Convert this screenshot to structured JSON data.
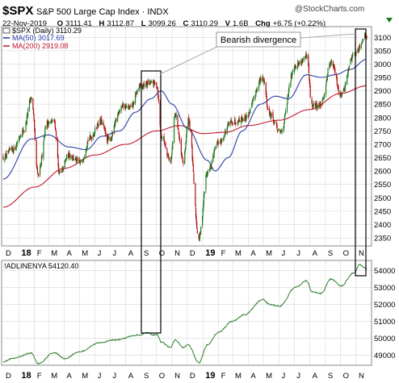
{
  "header": {
    "symbol": "$SPX",
    "name": "S&P 500 Large Cap Index",
    "exchange": "INDX",
    "date": "22-Nov-2019",
    "open_label": "O",
    "open": "3111.41",
    "high_label": "H",
    "high": "3112.87",
    "low_label": "L",
    "low": "3099.26",
    "close_label": "C",
    "close": "3110.29",
    "volume_label": "V",
    "volume": "1.6B",
    "change_label": "Chg",
    "change": "+6.75 (+0.22%)",
    "watermark": "@StockCharts.com"
  },
  "legend": {
    "price": "$SPX (Daily) 3110.29",
    "ma50": "MA(50) 3017.69",
    "ma200": "MA(200) 2919.08",
    "breadth": "!ADLINENYA 54120.40"
  },
  "annotation": {
    "text": "Bearish divergence"
  },
  "colors": {
    "up": "#1e7a1e",
    "down": "#b01010",
    "ma50": "#2a3ea8",
    "ma200": "#c0182e",
    "adline": "#2e7d2e",
    "grid": "#d8d8d8"
  },
  "x_axis": {
    "labels": [
      "D",
      "18",
      "F",
      "M",
      "A",
      "M",
      "J",
      "J",
      "A",
      "S",
      "O",
      "N",
      "D",
      "19",
      "F",
      "M",
      "A",
      "M",
      "J",
      "J",
      "A",
      "S",
      "O",
      "N"
    ]
  },
  "chart_data": [
    {
      "type": "candlestick",
      "title": "$SPX S&P 500 Large Cap Index",
      "y_ticks": [
        2350,
        2400,
        2450,
        2500,
        2550,
        2600,
        2650,
        2700,
        2750,
        2800,
        2850,
        2900,
        2950,
        3000,
        3050,
        3100
      ],
      "ylim": [
        2320,
        3140
      ],
      "price_anchors": [
        [
          "2017-12-01",
          2650
        ],
        [
          "2017-12-20",
          2680
        ],
        [
          "2018-01-10",
          2750
        ],
        [
          "2018-01-26",
          2872
        ],
        [
          "2018-02-08",
          2582
        ],
        [
          "2018-02-26",
          2780
        ],
        [
          "2018-03-12",
          2785
        ],
        [
          "2018-03-23",
          2588
        ],
        [
          "2018-04-10",
          2660
        ],
        [
          "2018-05-03",
          2630
        ],
        [
          "2018-05-22",
          2725
        ],
        [
          "2018-06-12",
          2785
        ],
        [
          "2018-06-28",
          2715
        ],
        [
          "2018-07-25",
          2845
        ],
        [
          "2018-08-10",
          2835
        ],
        [
          "2018-08-29",
          2915
        ],
        [
          "2018-09-20",
          2930
        ],
        [
          "2018-10-01",
          2925
        ],
        [
          "2018-10-11",
          2730
        ],
        [
          "2018-10-29",
          2640
        ],
        [
          "2018-11-07",
          2810
        ],
        [
          "2018-11-23",
          2633
        ],
        [
          "2018-12-03",
          2790
        ],
        [
          "2018-12-24",
          2351
        ],
        [
          "2019-01-10",
          2596
        ],
        [
          "2019-02-01",
          2706
        ],
        [
          "2019-02-28",
          2784
        ],
        [
          "2019-03-25",
          2798
        ],
        [
          "2019-04-30",
          2946
        ],
        [
          "2019-05-13",
          2812
        ],
        [
          "2019-06-03",
          2744
        ],
        [
          "2019-07-03",
          2995
        ],
        [
          "2019-07-26",
          3025
        ],
        [
          "2019-08-05",
          2845
        ],
        [
          "2019-08-23",
          2847
        ],
        [
          "2019-09-12",
          3009
        ],
        [
          "2019-10-02",
          2887
        ],
        [
          "2019-10-28",
          3039
        ],
        [
          "2019-11-22",
          3110
        ]
      ],
      "ma50_anchors": [
        [
          "2017-12-01",
          2570
        ],
        [
          "2018-01-26",
          2720
        ],
        [
          "2018-03-01",
          2735
        ],
        [
          "2018-04-10",
          2690
        ],
        [
          "2018-05-15",
          2680
        ],
        [
          "2018-06-15",
          2730
        ],
        [
          "2018-07-20",
          2750
        ],
        [
          "2018-08-20",
          2820
        ],
        [
          "2018-09-20",
          2870
        ],
        [
          "2018-10-10",
          2900
        ],
        [
          "2018-11-01",
          2850
        ],
        [
          "2018-12-01",
          2760
        ],
        [
          "2019-01-10",
          2640
        ],
        [
          "2019-01-25",
          2600
        ],
        [
          "2019-02-20",
          2650
        ],
        [
          "2019-03-20",
          2750
        ],
        [
          "2019-04-25",
          2850
        ],
        [
          "2019-05-25",
          2880
        ],
        [
          "2019-06-20",
          2870
        ],
        [
          "2019-07-25",
          2960
        ],
        [
          "2019-08-25",
          2950
        ],
        [
          "2019-09-20",
          2960
        ],
        [
          "2019-10-20",
          2980
        ],
        [
          "2019-11-22",
          3018
        ]
      ],
      "ma200_anchors": [
        [
          "2017-12-01",
          2465
        ],
        [
          "2018-02-01",
          2540
        ],
        [
          "2018-04-01",
          2610
        ],
        [
          "2018-06-01",
          2660
        ],
        [
          "2018-08-01",
          2700
        ],
        [
          "2018-10-01",
          2750
        ],
        [
          "2018-11-15",
          2770
        ],
        [
          "2019-01-01",
          2740
        ],
        [
          "2019-02-15",
          2745
        ],
        [
          "2019-04-01",
          2770
        ],
        [
          "2019-06-01",
          2790
        ],
        [
          "2019-08-01",
          2830
        ],
        [
          "2019-10-01",
          2890
        ],
        [
          "2019-11-22",
          2919
        ]
      ]
    },
    {
      "type": "line",
      "title": "!ADLINENYA",
      "y_ticks": [
        49000,
        50000,
        51000,
        52000,
        53000,
        54000
      ],
      "ylim": [
        48400,
        54600
      ],
      "series": [
        {
          "name": "!ADLINENYA",
          "anchors": [
            [
              "2017-12-01",
              48620
            ],
            [
              "2017-12-20",
              48800
            ],
            [
              "2018-01-26",
              49120
            ],
            [
              "2018-02-08",
              48500
            ],
            [
              "2018-03-12",
              49150
            ],
            [
              "2018-04-02",
              48800
            ],
            [
              "2018-05-01",
              49200
            ],
            [
              "2018-06-12",
              49750
            ],
            [
              "2018-07-10",
              49900
            ],
            [
              "2018-08-29",
              50200
            ],
            [
              "2018-09-12",
              50330
            ],
            [
              "2018-09-25",
              50200
            ],
            [
              "2018-10-01",
              50250
            ],
            [
              "2018-10-11",
              49750
            ],
            [
              "2018-10-29",
              49450
            ],
            [
              "2018-11-07",
              49900
            ],
            [
              "2018-11-23",
              49450
            ],
            [
              "2018-12-03",
              49600
            ],
            [
              "2018-12-24",
              48550
            ],
            [
              "2019-01-10",
              49600
            ],
            [
              "2019-02-01",
              50350
            ],
            [
              "2019-02-28",
              51000
            ],
            [
              "2019-03-25",
              51400
            ],
            [
              "2019-04-30",
              52300
            ],
            [
              "2019-05-13",
              52000
            ],
            [
              "2019-06-03",
              51900
            ],
            [
              "2019-07-03",
              53000
            ],
            [
              "2019-07-26",
              53400
            ],
            [
              "2019-08-05",
              52750
            ],
            [
              "2019-08-23",
              52650
            ],
            [
              "2019-09-12",
              53500
            ],
            [
              "2019-10-02",
              53100
            ],
            [
              "2019-10-28",
              53900
            ],
            [
              "2019-11-08",
              54350
            ],
            [
              "2019-11-22",
              54120
            ]
          ]
        }
      ]
    }
  ]
}
